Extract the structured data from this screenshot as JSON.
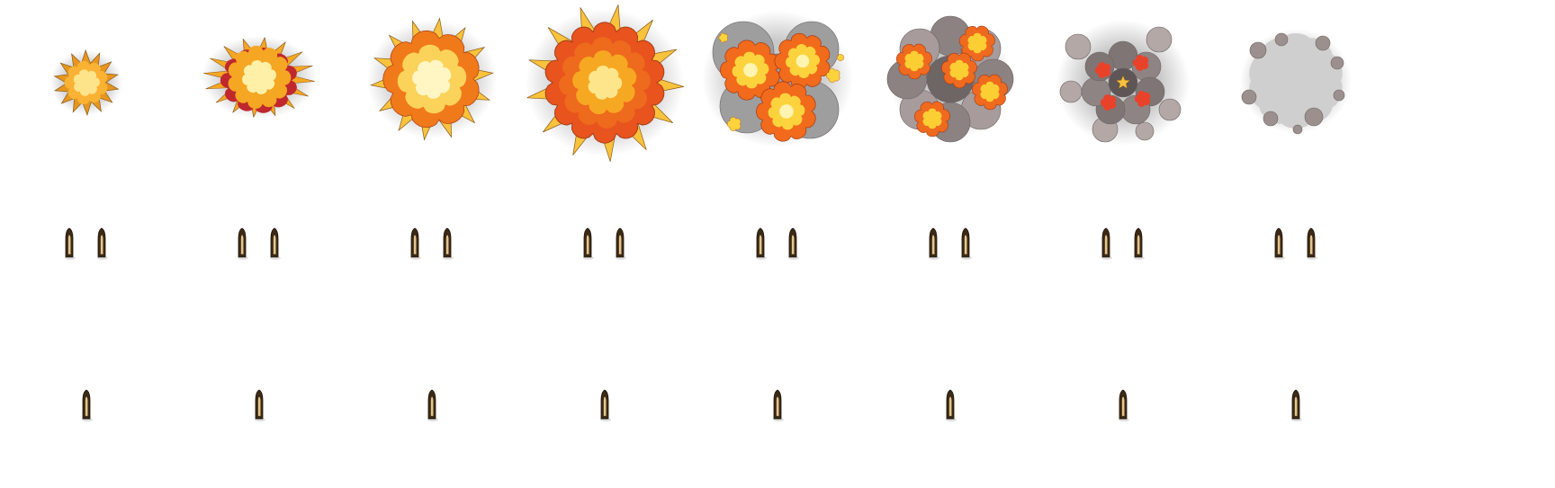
{
  "sprite_sheet": {
    "rows": [
      {
        "name": "explosion",
        "frame_count": 8,
        "frames": [
          {
            "stage": "spark",
            "palette": [
              "#f9b233",
              "#fde38a",
              "#e6961f"
            ]
          },
          {
            "stage": "flash",
            "palette": [
              "#f5a623",
              "#fff0a8",
              "#c0282d"
            ]
          },
          {
            "stage": "fireball",
            "palette": [
              "#f07a1a",
              "#fbd35a",
              "#fff6c4"
            ]
          },
          {
            "stage": "peak",
            "palette": [
              "#e8531e",
              "#f7a823",
              "#fde58c"
            ]
          },
          {
            "stage": "burst",
            "palette": [
              "#f26a1b",
              "#fcd33c",
              "#9e9e9e"
            ]
          },
          {
            "stage": "smoke-fire",
            "palette": [
              "#ef6a1e",
              "#fbce33",
              "#8c8281"
            ]
          },
          {
            "stage": "smoke",
            "palette": [
              "#7f7575",
              "#b3a8a6",
              "#e8432a"
            ]
          },
          {
            "stage": "fade",
            "palette": [
              "#cfcfcf",
              "#9c908e"
            ]
          }
        ]
      },
      {
        "name": "bullets-double",
        "frame_count": 8,
        "bullets_per_frame": 2,
        "palette": [
          "#3b2a16",
          "#c8a46a",
          "#f6e2b0"
        ]
      },
      {
        "name": "bullets-single",
        "frame_count": 8,
        "bullets_per_frame": 1,
        "palette": [
          "#3b2a16",
          "#c8a46a",
          "#f6e2b0"
        ]
      }
    ]
  }
}
